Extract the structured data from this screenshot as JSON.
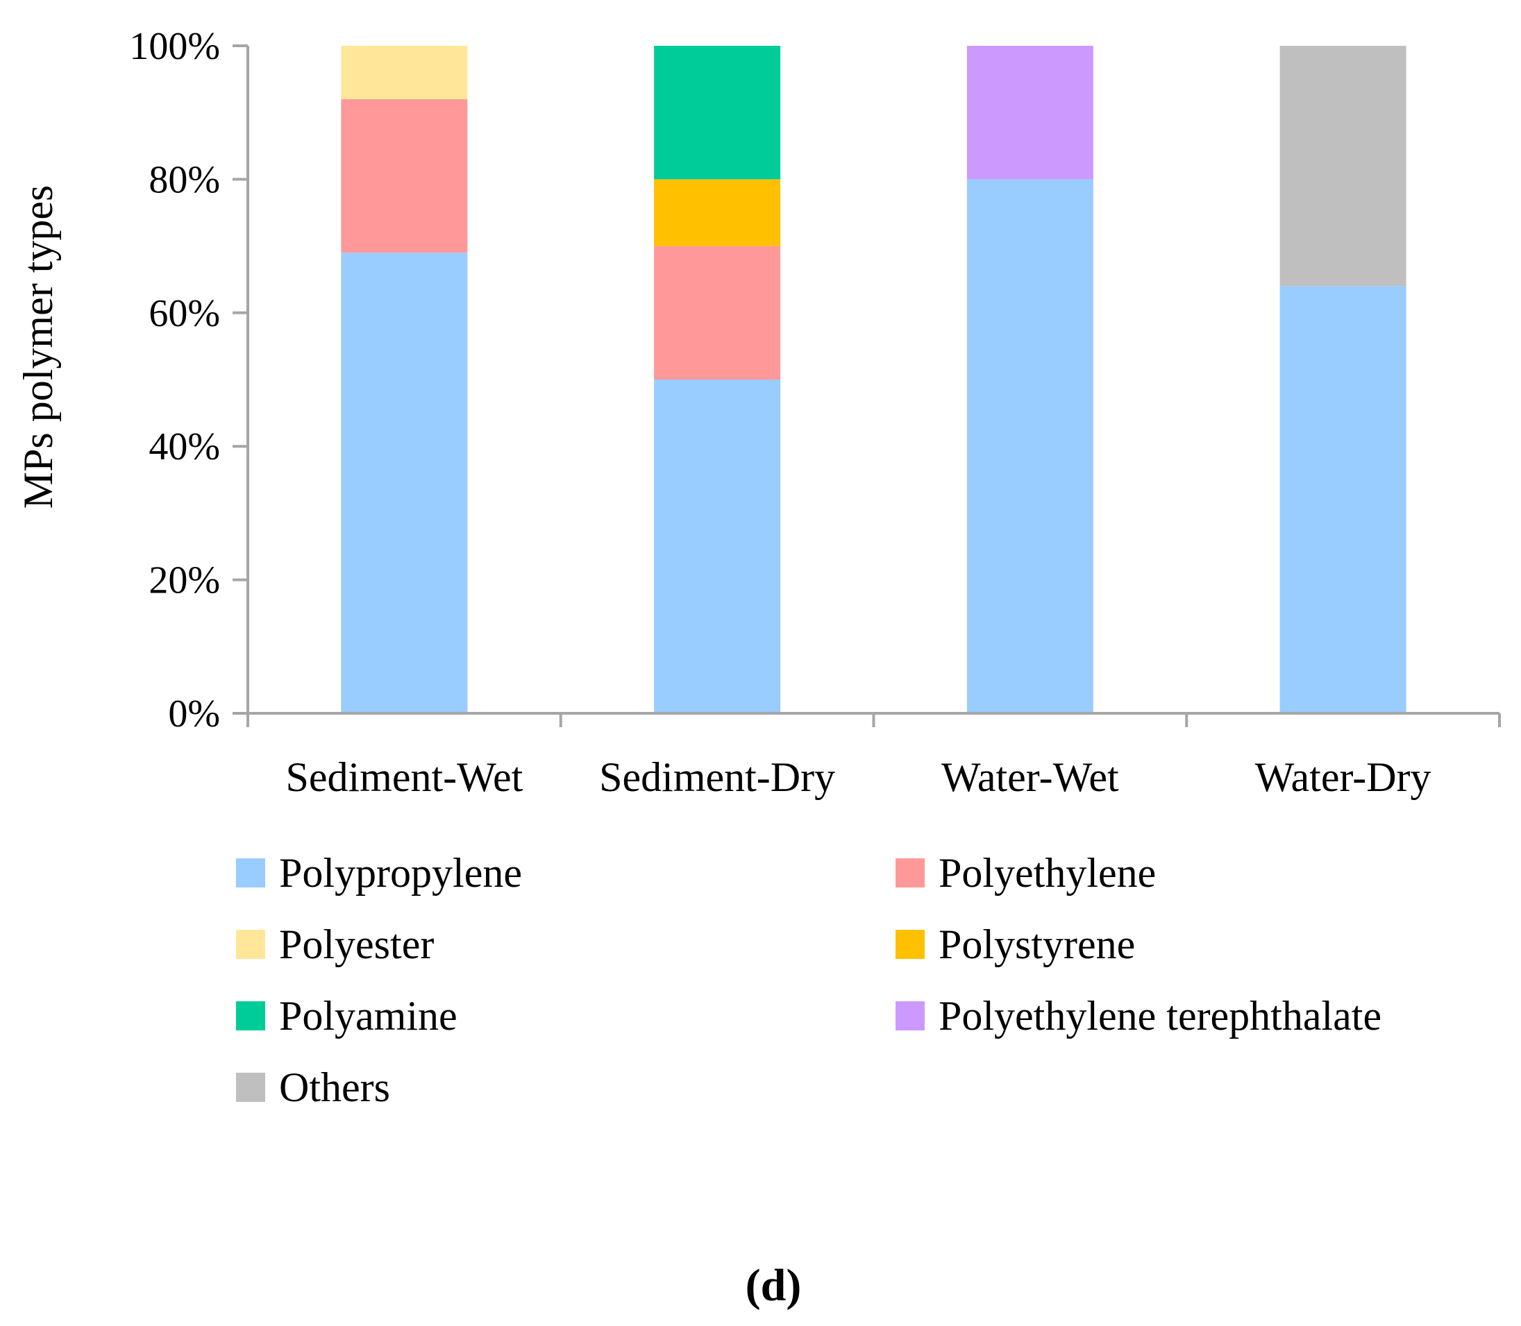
{
  "chart_data": {
    "type": "bar",
    "stacked": true,
    "percent_stacked": true,
    "panel_label": "(d)",
    "ylabel": "MPs polymer types",
    "xlabel": "",
    "ylim": [
      0,
      100
    ],
    "y_ticks": [
      0,
      20,
      40,
      60,
      80,
      100
    ],
    "y_tick_labels": [
      "0%",
      "20%",
      "40%",
      "60%",
      "80%",
      "100%"
    ],
    "categories": [
      "Sediment-Wet",
      "Sediment-Dry",
      "Water-Wet",
      "Water-Dry"
    ],
    "grid": false,
    "legend_position": "bottom",
    "series": [
      {
        "name": "Polypropylene",
        "color": "#99CCFF",
        "values": [
          69,
          50,
          80,
          64
        ]
      },
      {
        "name": "Polyethylene",
        "color": "#FF9999",
        "values": [
          23,
          20,
          0,
          0
        ]
      },
      {
        "name": "Polyester",
        "color": "#FFE699",
        "values": [
          8,
          0,
          0,
          0
        ]
      },
      {
        "name": "Polystyrene",
        "color": "#FFC000",
        "values": [
          0,
          10,
          0,
          0
        ]
      },
      {
        "name": "Polyamine",
        "color": "#00CC99",
        "values": [
          0,
          20,
          0,
          0
        ]
      },
      {
        "name": "Polyethylene terephthalate",
        "color": "#CC99FF",
        "values": [
          0,
          0,
          20,
          0
        ]
      },
      {
        "name": "Others",
        "color": "#BFBFBF",
        "values": [
          0,
          0,
          0,
          36
        ]
      }
    ],
    "axis_color": "#A6A6A6"
  }
}
